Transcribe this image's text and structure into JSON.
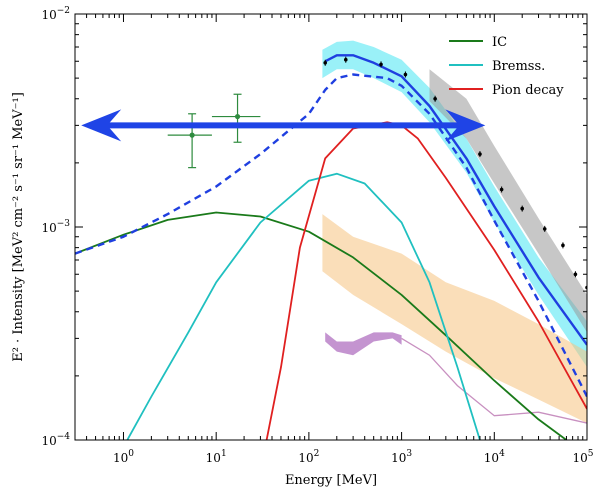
{
  "chart_data": {
    "type": "line",
    "xlabel": "Energy [MeV]",
    "ylabel": "E² · Intensity [MeV² cm⁻² s⁻¹ sr⁻¹ MeV⁻¹]",
    "xscale": "log",
    "yscale": "log",
    "xlim": [
      0.3,
      100000
    ],
    "ylim": [
      0.0001,
      0.01
    ],
    "x_ticks": [
      {
        "value": 1,
        "base": "10",
        "exp": "0"
      },
      {
        "value": 10,
        "base": "10",
        "exp": "1"
      },
      {
        "value": 100,
        "base": "10",
        "exp": "2"
      },
      {
        "value": 1000,
        "base": "10",
        "exp": "3"
      },
      {
        "value": 10000,
        "base": "10",
        "exp": "4"
      },
      {
        "value": 100000,
        "base": "10",
        "exp": "5"
      }
    ],
    "y_ticks": [
      {
        "value": 0.0001,
        "base": "10",
        "exp": "−4"
      },
      {
        "value": 0.001,
        "base": "10",
        "exp": "−3"
      },
      {
        "value": 0.01,
        "base": "10",
        "exp": "−2"
      }
    ],
    "legend_position": "top-right",
    "series": [
      {
        "name": "IC",
        "color": "#1a7a1a",
        "x": [
          0.3,
          1,
          3,
          10,
          30,
          100,
          300,
          1000,
          3000,
          10000,
          30000,
          60000
        ],
        "y": [
          0.00075,
          0.00092,
          0.00108,
          0.00117,
          0.00112,
          0.00095,
          0.00072,
          0.00048,
          0.00031,
          0.00019,
          0.000125,
          0.0001
        ]
      },
      {
        "name": "Bremss.",
        "color": "#20c0c0",
        "x": [
          1.1,
          2,
          5,
          10,
          30,
          100,
          200,
          400,
          1000,
          2000,
          4000,
          7000
        ],
        "y": [
          0.0001,
          0.00016,
          0.00032,
          0.00055,
          0.00105,
          0.00165,
          0.00178,
          0.0016,
          0.00105,
          0.00055,
          0.00022,
          0.0001
        ]
      },
      {
        "name": "Pion decay",
        "color": "#e02020",
        "x": [
          35,
          50,
          80,
          150,
          300,
          700,
          1000,
          1500,
          3000,
          10000,
          30000,
          100000
        ],
        "y": [
          0.0001,
          0.00022,
          0.0008,
          0.0021,
          0.0029,
          0.0031,
          0.003,
          0.0026,
          0.0017,
          0.00078,
          0.00036,
          0.00014
        ]
      },
      {
        "name": "",
        "color": "#1f3fe0",
        "style": "dashed",
        "x": [
          0.3,
          1,
          3,
          10,
          30,
          100,
          150,
          200,
          300,
          700,
          1000,
          2000,
          5000,
          10000,
          30000,
          100000
        ],
        "y": [
          0.00075,
          0.0009,
          0.00115,
          0.00155,
          0.0022,
          0.0034,
          0.0044,
          0.005,
          0.0052,
          0.005,
          0.0046,
          0.0034,
          0.0019,
          0.00107,
          0.00045,
          0.00016
        ]
      },
      {
        "name": "",
        "color": "#1f3fe0",
        "style": "solid",
        "x": [
          150,
          200,
          300,
          500,
          1000,
          2000,
          5000,
          10000,
          30000,
          100000
        ],
        "y": [
          0.006,
          0.0064,
          0.0064,
          0.0059,
          0.0051,
          0.0037,
          0.0021,
          0.00125,
          0.00058,
          0.00028
        ]
      }
    ],
    "bands": [
      {
        "color": "#20e0f0",
        "opacity": 0.45,
        "x": [
          140,
          200,
          300,
          500,
          1000,
          2000,
          5000,
          10000,
          30000,
          100000
        ],
        "lo": [
          0.005,
          0.0055,
          0.0055,
          0.005,
          0.0043,
          0.0031,
          0.0018,
          0.00105,
          0.00048,
          0.00022
        ],
        "hi": [
          0.0068,
          0.0074,
          0.0075,
          0.007,
          0.0061,
          0.0045,
          0.0026,
          0.00155,
          0.00072,
          0.00036
        ]
      },
      {
        "color": "#999999",
        "opacity": 0.55,
        "x": [
          2000,
          5000,
          10000,
          30000,
          100000
        ],
        "lo": [
          0.0039,
          0.0026,
          0.0016,
          0.00075,
          0.00032
        ],
        "hi": [
          0.0055,
          0.004,
          0.0024,
          0.0011,
          0.00048
        ]
      },
      {
        "color": "#f6c27f",
        "opacity": 0.55,
        "x": [
          140,
          300,
          1000,
          3000,
          10000,
          30000,
          100000
        ],
        "lo": [
          0.00062,
          0.00048,
          0.00035,
          0.00026,
          0.000195,
          0.000155,
          0.00012
        ],
        "hi": [
          0.00115,
          0.0009,
          0.00075,
          0.00055,
          0.00045,
          0.00035,
          0.00026
        ]
      },
      {
        "color": "#b070c0",
        "opacity": 0.75,
        "x": [
          150,
          200,
          300,
          500,
          800,
          1000
        ],
        "lo": [
          0.00029,
          0.00026,
          0.00025,
          0.00029,
          0.0003,
          0.00028
        ],
        "hi": [
          0.00032,
          0.00029,
          0.00029,
          0.00032,
          0.00032,
          0.00031
        ]
      }
    ],
    "thin_lines": [
      {
        "color": "#c890c0",
        "x": [
          1000,
          2000,
          4000,
          10000,
          30000,
          100000
        ],
        "y": [
          0.0003,
          0.00025,
          0.00018,
          0.00013,
          0.000135,
          0.00012
        ]
      }
    ],
    "data_points": [
      {
        "x": 5.5,
        "y": 0.0027,
        "xlo": 3,
        "xhi": 9,
        "ylo": 0.0019,
        "yhi": 0.0034,
        "color": "#2e8b3e"
      },
      {
        "x": 17,
        "y": 0.0033,
        "xlo": 9,
        "xhi": 30,
        "ylo": 0.0025,
        "yhi": 0.0042,
        "color": "#2e8b3e"
      },
      {
        "x": 150,
        "y": 0.0059,
        "color": "#000000"
      },
      {
        "x": 250,
        "y": 0.0061,
        "color": "#000000"
      },
      {
        "x": 600,
        "y": 0.0058,
        "color": "#000000"
      },
      {
        "x": 1100,
        "y": 0.0052,
        "color": "#000000"
      },
      {
        "x": 2300,
        "y": 0.004,
        "color": "#000000"
      },
      {
        "x": 4000,
        "y": 0.003,
        "color": "#000000"
      },
      {
        "x": 7000,
        "y": 0.0022,
        "color": "#000000"
      },
      {
        "x": 12000,
        "y": 0.0015,
        "color": "#000000"
      },
      {
        "x": 20000,
        "y": 0.00122,
        "color": "#000000"
      },
      {
        "x": 35000,
        "y": 0.00098,
        "color": "#000000"
      },
      {
        "x": 55000,
        "y": 0.00082,
        "color": "#000000"
      },
      {
        "x": 75000,
        "y": 0.0006,
        "color": "#000000"
      },
      {
        "x": 100000,
        "y": 0.00052,
        "color": "#000000"
      }
    ],
    "arrow_overlay": {
      "x_start": 0.35,
      "x_end": 8000,
      "y": 0.003,
      "color": "#1f44e6"
    }
  }
}
